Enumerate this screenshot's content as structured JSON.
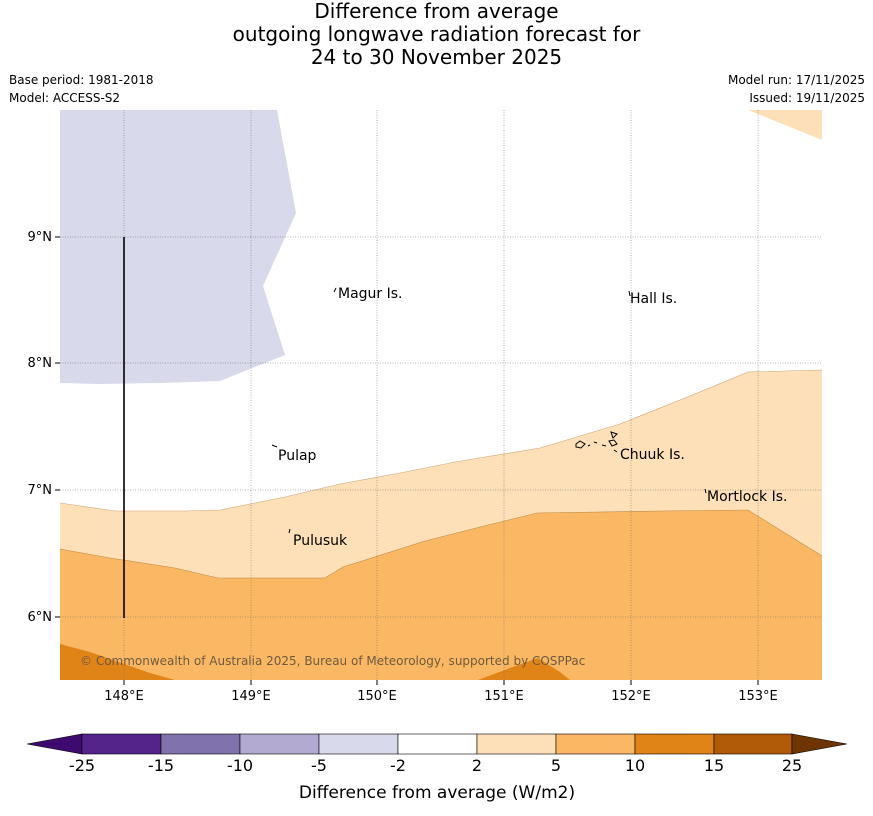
{
  "title": {
    "line1": "Difference from average",
    "line2": "outgoing longwave radiation forecast for",
    "line3": "24 to 30 November 2025"
  },
  "meta": {
    "base_period": "Base period: 1981-2018",
    "model": "Model: ACCESS-S2",
    "model_run": "Model run: 17/11/2025",
    "issued": "Issued: 19/11/2025"
  },
  "map": {
    "lon_ticks": [
      "148°E",
      "149°E",
      "150°E",
      "151°E",
      "152°E",
      "153°E"
    ],
    "lat_ticks": [
      "9°N",
      "8°N",
      "7°N",
      "6°N"
    ],
    "places": {
      "magur": "Magur Is.",
      "hall": "Hall Is.",
      "pulap": "Pulap",
      "chuuk": "Chuuk Is.",
      "mortlock": "Mortlock Is.",
      "pulusuk": "Pulusuk"
    },
    "copyright": "© Commonwealth of Australia 2025, Bureau of Meteorology, supported by COSPPac",
    "colors": {
      "band_m5_m2": "#d8d9ea",
      "band_2_5": "#fde0b8",
      "band_5_10": "#fbb864",
      "band_10_15": "#e08418"
    }
  },
  "colorbar": {
    "tick_labels": [
      "-25",
      "-15",
      "-10",
      "-5",
      "-2",
      "2",
      "5",
      "10",
      "15",
      "25"
    ],
    "title": "Difference from average (W/m2)",
    "colors": [
      "#3f0a6e",
      "#55248b",
      "#8073ad",
      "#b2aad1",
      "#d8d9ea",
      "#ffffff",
      "#fde0b8",
      "#fbb864",
      "#e08418",
      "#b15b08",
      "#6e3503"
    ]
  }
}
